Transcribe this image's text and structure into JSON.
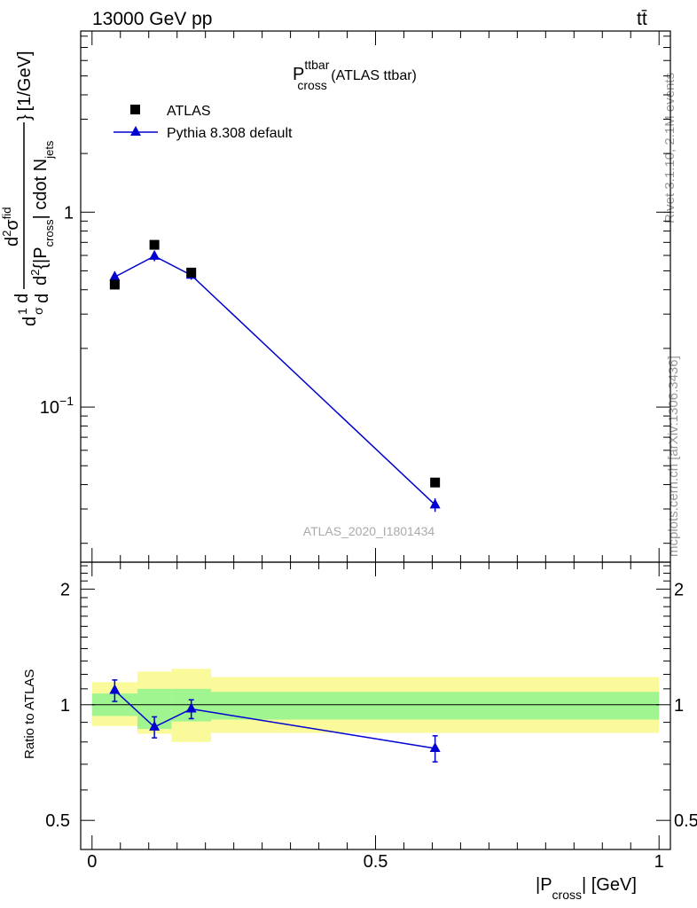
{
  "header": {
    "energy_label": "13000 GeV pp",
    "process_label": "tt̄",
    "side_label_rivet": "Rivet 3.1.10,  2.1M events",
    "side_label_mcplots": "mcplots.cern.ch [arXiv:1306.3436]"
  },
  "chart_data": [
    {
      "type": "scatter",
      "title_main": "P",
      "title_sup": "ttbar",
      "title_sub": "cross",
      "title_suffix": " (ATLAS ttbar)",
      "watermark": "ATLAS_2020_I1801434",
      "y_scale": "log",
      "ylim": [
        0.016,
        8.5
      ],
      "y_ticks": [
        {
          "value": 0.1,
          "label": "10",
          "sup": "−1"
        },
        {
          "value": 1,
          "label": "1",
          "sup": ""
        }
      ],
      "ylabel_parts": {
        "left": "d",
        "frac_num": "1",
        "frac_den": "σ",
        "dd_num": "d",
        "dd_den": "d",
        "top_num": "d",
        "top_num_sup": "2",
        "top_sigma": "σ",
        "top_sigma_sup": "fid",
        "bottom_d": "d",
        "bottom_d_sup": "2",
        "bottom_body": "{|P",
        "bottom_sub": "cross",
        "bottom_body2": "| cdot N",
        "bottom_sub2": "jets",
        "brace_close": "}",
        "units": "[1/GeV]"
      },
      "legend": {
        "position": "top-left",
        "entries": [
          {
            "name": "ATLAS",
            "marker": "square",
            "color": "#000000"
          },
          {
            "name": "Pythia 8.308 default",
            "marker": "triangle",
            "color": "#0000d0"
          }
        ]
      },
      "series": [
        {
          "name": "ATLAS",
          "x": [
            0.04,
            0.11,
            0.175,
            0.605
          ],
          "y": [
            0.425,
            0.68,
            0.49,
            0.041
          ]
        },
        {
          "name": "Pythia 8.308 default",
          "x": [
            0.04,
            0.11,
            0.175,
            0.605
          ],
          "y": [
            0.465,
            0.595,
            0.475,
            0.0315
          ],
          "yerr": [
            0.03,
            0.035,
            0.025,
            0.0025
          ]
        }
      ]
    },
    {
      "type": "scatter",
      "ylabel": "Ratio to ATLAS",
      "xlabel_pre": "|P",
      "xlabel_sub": "cross",
      "xlabel_post": "| [GeV]",
      "xlim": [
        -0.02,
        1.02
      ],
      "ylim": [
        0.42,
        2.35
      ],
      "x_ticks": [
        {
          "value": 0,
          "label": "0"
        },
        {
          "value": 0.5,
          "label": "0.5"
        },
        {
          "value": 1,
          "label": "1"
        }
      ],
      "y_ticks": [
        {
          "value": 0.5,
          "label": "0.5"
        },
        {
          "value": 1,
          "label": "1"
        },
        {
          "value": 2,
          "label": "2"
        }
      ],
      "uncertainty_bands": [
        {
          "x0": 0.0,
          "x1": 0.08,
          "inner": [
            0.935,
            1.07
          ],
          "outer": [
            0.88,
            1.145
          ]
        },
        {
          "x0": 0.08,
          "x1": 0.14,
          "inner": [
            0.865,
            1.1
          ],
          "outer": [
            0.84,
            1.22
          ]
        },
        {
          "x0": 0.14,
          "x1": 0.21,
          "inner": [
            0.905,
            1.1
          ],
          "outer": [
            0.8,
            1.24
          ]
        },
        {
          "x0": 0.21,
          "x1": 1.0,
          "inner": [
            0.915,
            1.08
          ],
          "outer": [
            0.845,
            1.18
          ]
        }
      ],
      "series": [
        {
          "name": "Pythia 8.308 default",
          "x": [
            0.04,
            0.11,
            0.175,
            0.605
          ],
          "y": [
            1.09,
            0.875,
            0.975,
            0.77
          ],
          "yerr": [
            0.07,
            0.055,
            0.055,
            0.06
          ]
        }
      ],
      "reference_line": 1,
      "colors": {
        "inner_band": "#a0f590",
        "outer_band": "#fafa9b",
        "line": "#0000d0"
      }
    }
  ]
}
